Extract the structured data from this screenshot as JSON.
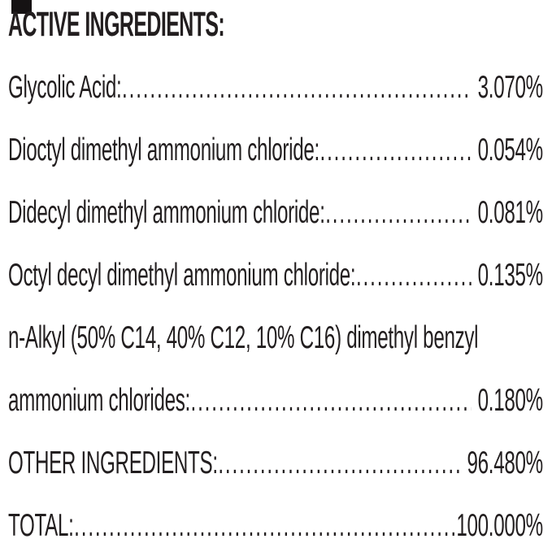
{
  "colors": {
    "background": "#ffffff",
    "text": "#221e1f",
    "corner_rect": "#151213"
  },
  "header": {
    "title": "ACTIVE INGREDIENTS:"
  },
  "table": {
    "dot_leader": "........................................................................................................................................................",
    "rows": [
      {
        "label": "Glycolic Acid:",
        "value": "3.070%"
      },
      {
        "label": "Dioctyl dimethyl ammonium chloride:",
        "value": "0.054%"
      },
      {
        "label": "Didecyl dimethyl ammonium chloride:",
        "value": "0.081%"
      },
      {
        "label": "Octyl decyl dimethyl ammonium chloride:",
        "value": "0.135%"
      },
      {
        "label": "n-Alkyl (50% C14, 40% C12, 10% C16) dimethyl benzyl",
        "value": ""
      },
      {
        "label": "ammonium chlorides:",
        "value": "0.180%"
      },
      {
        "label": "OTHER INGREDIENTS:",
        "value": "96.480%"
      },
      {
        "label": "TOTAL:",
        "value": "100.000%"
      }
    ]
  }
}
